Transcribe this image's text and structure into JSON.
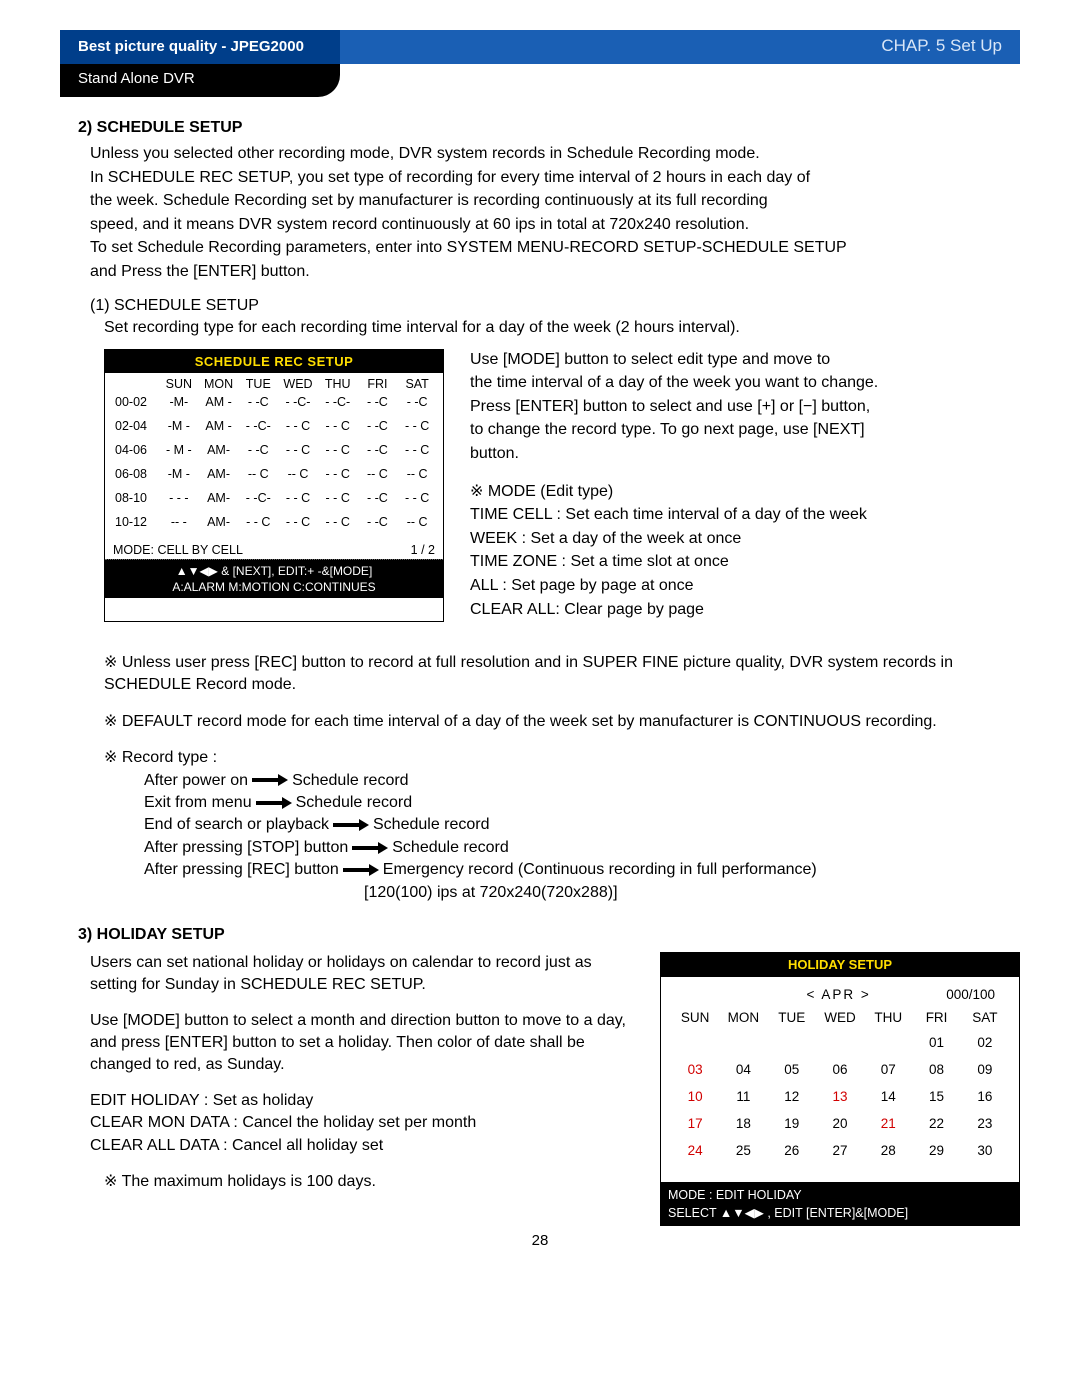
{
  "header": {
    "left": "Best picture quality - JPEG2000",
    "right": "CHAP. 5  Set Up",
    "sub": "Stand Alone DVR"
  },
  "schedule": {
    "title": "2) SCHEDULE SETUP",
    "intro": [
      "Unless you selected other recording mode, DVR system records in Schedule Recording mode.",
      "In SCHEDULE REC SETUP, you set type of recording for every time interval of 2 hours in each day of",
      "the week. Schedule Recording set by manufacturer is recording continuously at its full recording",
      "speed, and it means DVR system record continuously at 60 ips in total at 720x240 resolution.",
      "To set Schedule Recording parameters, enter into SYSTEM MENU-RECORD SETUP-SCHEDULE SETUP",
      "and Press the [ENTER] button."
    ],
    "sub1_label": "(1) SCHEDULE SETUP",
    "sub1_desc": "Set recording type for each recording time interval for a day of the week (2 hours interval).",
    "box_title": "SCHEDULE REC SETUP",
    "days": [
      "SUN",
      "MON",
      "TUE",
      "WED",
      "THU",
      "FRI",
      "SAT"
    ],
    "rows": [
      {
        "t": "00-02",
        "c": [
          "-M-",
          "AM -",
          "- -C",
          "- -C-",
          "- -C-",
          "- -C",
          "- -C"
        ]
      },
      {
        "t": "02-04",
        "c": [
          "-M -",
          "AM -",
          "- -C-",
          "- - C",
          "- - C",
          "- -C",
          "- - C"
        ]
      },
      {
        "t": "04-06",
        "c": [
          "- M -",
          "AM-",
          "- -C",
          "- - C",
          "- - C",
          "- -C",
          "- - C"
        ]
      },
      {
        "t": "06-08",
        "c": [
          "-M -",
          "AM-",
          "-- C",
          "-- C",
          "- - C",
          "-- C",
          "-- C"
        ]
      },
      {
        "t": "08-10",
        "c": [
          "- - -",
          "AM-",
          "- -C-",
          "- - C",
          "- - C",
          "- -C",
          "- - C"
        ]
      },
      {
        "t": "10-12",
        "c": [
          "-- -",
          "AM-",
          "- - C",
          "- - C",
          "- - C",
          "- -C",
          "-- C"
        ]
      }
    ],
    "mode_line": "MODE: CELL BY CELL",
    "page_ind": "1 / 2",
    "footer1": "▲▼◀▶ & [NEXT], EDIT:+ -&[MODE]",
    "footer2": "A:ALARM   M:MOTION   C:CONTINUES",
    "right_para": [
      "Use [MODE] button to select edit type and move to",
      "the time interval of a day of the week you want to change.",
      "Press [ENTER] button to select and use [+] or [−] button,",
      "to change the record type. To go next page, use [NEXT]",
      "button."
    ],
    "mode_head": "※ MODE (Edit type)",
    "mode_lines": [
      "TIME CELL : Set each time interval of a day of the week",
      "WEEK : Set a day of the week at once",
      "TIME ZONE : Set a time slot at once",
      "ALL : Set page by page at once",
      "CLEAR ALL: Clear page by page"
    ],
    "note1": "※ Unless user press [REC] button to record at full resolution and in SUPER FINE picture quality, DVR system records in SCHEDULE Record mode.",
    "note2": "※ DEFAULT record mode for each time interval of a day of the week set by manufacturer is CONTINUOUS recording.",
    "record_type_head": "※ Record type :",
    "record_type_lines": [
      {
        "l": "After power on",
        "r": "Schedule record"
      },
      {
        "l": "Exit from menu",
        "r": "Schedule record"
      },
      {
        "l": "End of search or playback",
        "r": "Schedule record"
      },
      {
        "l": "After pressing [STOP] button",
        "r": "Schedule record"
      },
      {
        "l": "After pressing [REC] button",
        "r": "Emergency record (Continuous recording in full performance)"
      }
    ],
    "record_tail": "[120(100) ips at 720x240(720x288)]"
  },
  "holiday": {
    "title": "3) HOLIDAY SETUP",
    "p1": "Users can set national holiday or holidays on calendar to record just as setting for Sunday in SCHEDULE REC SETUP.",
    "p2": "Use [MODE] button to select a month and direction button to move to a day, and press [ENTER] button to set a holiday. Then color of date shall be changed to red, as Sunday.",
    "lines": [
      "EDIT HOLIDAY : Set as holiday",
      "CLEAR MON DATA : Cancel the holiday set per month",
      "CLEAR ALL DATA : Cancel all holiday set"
    ],
    "max_note": "※ The maximum holidays is 100 days.",
    "box_title": "HOLIDAY SETUP",
    "month_label": "<  APR  >",
    "count": "000/100",
    "days": [
      "SUN",
      "MON",
      "TUE",
      "WED",
      "THU",
      "FRI",
      "SAT"
    ],
    "weeks": [
      [
        "",
        "",
        "",
        "",
        "",
        "01",
        "02"
      ],
      [
        "03",
        "04",
        "05",
        "06",
        "07",
        "08",
        "09"
      ],
      [
        "10",
        "11",
        "12",
        "13",
        "14",
        "15",
        "16"
      ],
      [
        "17",
        "18",
        "19",
        "20",
        "21",
        "22",
        "23"
      ],
      [
        "24",
        "25",
        "26",
        "27",
        "28",
        "29",
        "30"
      ]
    ],
    "red_days": [
      "03",
      "10",
      "13",
      "17",
      "21",
      "24"
    ],
    "footer1": "MODE : EDIT HOLIDAY",
    "footer2": "SELECT ▲▼◀▶ ,  EDIT [ENTER]&[MODE]"
  },
  "page_number": "28"
}
